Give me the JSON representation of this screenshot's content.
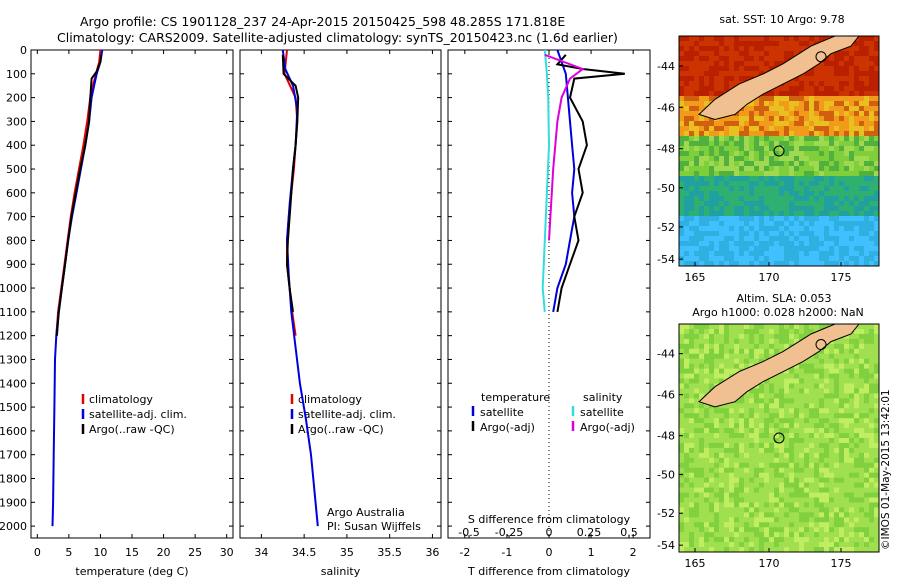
{
  "header": {
    "line1": "Argo profile: CS 1901128_237 24-Apr-2015 20150425_598 48.285S 171.818E",
    "line2": "Climatology: CARS2009. Satellite-adjusted climatology: synTS_20150423.nc (1.6d earlier)"
  },
  "footer_stamp": "©IMOS 01-May-2015 13:42:01",
  "credits": {
    "line1": "Argo Australia",
    "line2": "PI: Susan Wijffels"
  },
  "colors": {
    "climatology": "#e00000",
    "satellite": "#0000dd",
    "argo": "#000000",
    "sat_salinity": "#33dddd",
    "argo_salinity": "#dd00dd",
    "land": "#f0c090"
  },
  "chart_data": [
    {
      "type": "line",
      "name": "temperature",
      "xlabel": "temperature (deg C)",
      "ylim": [
        0,
        2050
      ],
      "xlim": [
        -1,
        31
      ],
      "xticks": [
        "0",
        "5",
        "10",
        "15",
        "20",
        "25",
        "30"
      ],
      "xtick_values": [
        0,
        5,
        10,
        15,
        20,
        25,
        30
      ],
      "yticks": [
        "0",
        "100",
        "200",
        "300",
        "400",
        "500",
        "600",
        "700",
        "800",
        "900",
        "1000",
        "1100",
        "1200",
        "1300",
        "1400",
        "1500",
        "1600",
        "1700",
        "1800",
        "1900",
        "2000"
      ],
      "ytick_values": [
        0,
        100,
        200,
        300,
        400,
        500,
        600,
        700,
        800,
        900,
        1000,
        1100,
        1200,
        1300,
        1400,
        1500,
        1600,
        1700,
        1800,
        1900,
        2000
      ],
      "legend": [
        "climatology",
        "satellite-adj. clim.",
        "Argo(..raw -QC)"
      ],
      "series": [
        {
          "name": "climatology",
          "color_key": "climatology",
          "points": [
            [
              10,
              0
            ],
            [
              9.8,
              50
            ],
            [
              9.3,
              100
            ],
            [
              8.8,
              150
            ],
            [
              8.4,
              200
            ],
            [
              7.9,
              300
            ],
            [
              7.3,
              400
            ],
            [
              6.6,
              500
            ],
            [
              5.9,
              600
            ],
            [
              5.3,
              700
            ],
            [
              4.8,
              800
            ],
            [
              4.3,
              900
            ],
            [
              3.8,
              1000
            ],
            [
              3.3,
              1100
            ],
            [
              3.0,
              1200
            ]
          ]
        },
        {
          "name": "satellite-adj. clim.",
          "color_key": "satellite",
          "points": [
            [
              10.3,
              0
            ],
            [
              10,
              50
            ],
            [
              9.4,
              100
            ],
            [
              9,
              150
            ],
            [
              8.6,
              200
            ],
            [
              8.2,
              300
            ],
            [
              7.6,
              400
            ],
            [
              6.9,
              500
            ],
            [
              6.2,
              600
            ],
            [
              5.5,
              700
            ],
            [
              4.9,
              800
            ],
            [
              4.4,
              900
            ],
            [
              3.9,
              1000
            ],
            [
              3.4,
              1100
            ],
            [
              3.0,
              1200
            ],
            [
              2.8,
              1300
            ],
            [
              2.7,
              1500
            ],
            [
              2.6,
              1700
            ],
            [
              2.5,
              1900
            ],
            [
              2.4,
              2000
            ]
          ]
        },
        {
          "name": "Argo(..raw -QC)",
          "color_key": "argo",
          "points": [
            [
              10.1,
              20
            ],
            [
              10,
              50
            ],
            [
              9.4,
              90
            ],
            [
              8.6,
              120
            ],
            [
              8.4,
              200
            ],
            [
              8.2,
              300
            ],
            [
              7.6,
              400
            ],
            [
              6.8,
              500
            ],
            [
              6.1,
              600
            ],
            [
              5.4,
              700
            ],
            [
              4.9,
              800
            ],
            [
              4.4,
              900
            ],
            [
              3.9,
              1000
            ],
            [
              3.4,
              1100
            ],
            [
              3.1,
              1200
            ]
          ]
        }
      ]
    },
    {
      "type": "line",
      "name": "salinity",
      "xlabel": "salinity",
      "ylim": [
        0,
        2050
      ],
      "xlim": [
        33.75,
        36.1
      ],
      "xticks": [
        "34",
        "34.5",
        "35",
        "35.5",
        "36"
      ],
      "xtick_values": [
        34,
        34.5,
        35,
        35.5,
        36
      ],
      "legend": [
        "climatology",
        "satellite-adj. clim.",
        "Argo(..raw -QC)"
      ],
      "series": [
        {
          "name": "climatology",
          "color_key": "climatology",
          "points": [
            [
              34.3,
              0
            ],
            [
              34.27,
              100
            ],
            [
              34.4,
              200
            ],
            [
              34.42,
              300
            ],
            [
              34.4,
              400
            ],
            [
              34.38,
              500
            ],
            [
              34.35,
              600
            ],
            [
              34.32,
              700
            ],
            [
              34.3,
              800
            ],
            [
              34.3,
              900
            ],
            [
              34.33,
              1000
            ],
            [
              34.36,
              1100
            ],
            [
              34.4,
              1200
            ]
          ]
        },
        {
          "name": "satellite-adj. clim.",
          "color_key": "satellite",
          "points": [
            [
              34.25,
              0
            ],
            [
              34.28,
              80
            ],
            [
              34.37,
              150
            ],
            [
              34.42,
              250
            ],
            [
              34.4,
              400
            ],
            [
              34.37,
              500
            ],
            [
              34.33,
              650
            ],
            [
              34.3,
              800
            ],
            [
              34.32,
              950
            ],
            [
              34.35,
              1100
            ],
            [
              34.4,
              1250
            ],
            [
              34.45,
              1400
            ],
            [
              34.52,
              1550
            ],
            [
              34.58,
              1700
            ],
            [
              34.62,
              1850
            ],
            [
              34.66,
              2000
            ]
          ]
        },
        {
          "name": "Argo(..raw -QC)",
          "color_key": "argo",
          "points": [
            [
              34.25,
              20
            ],
            [
              34.26,
              100
            ],
            [
              34.4,
              150
            ],
            [
              34.43,
              200
            ],
            [
              34.42,
              300
            ],
            [
              34.4,
              400
            ],
            [
              34.37,
              500
            ],
            [
              34.34,
              650
            ],
            [
              34.31,
              800
            ],
            [
              34.3,
              900
            ],
            [
              34.33,
              1000
            ],
            [
              34.37,
              1100
            ]
          ]
        }
      ]
    },
    {
      "type": "line",
      "name": "difference",
      "xlabel": "T difference from climatology",
      "xlabel_top": "S difference from climatology",
      "xlim": [
        -2.4,
        2.4
      ],
      "xticks": [
        "-2",
        "-1",
        "0",
        "1",
        "2"
      ],
      "xtick_values": [
        -2,
        -1,
        0,
        1,
        2
      ],
      "xticks_top": [
        "-0.5",
        "-0.25",
        "0",
        "0.25",
        "0.5"
      ],
      "xtick_top_values": [
        -1.9,
        -0.95,
        0,
        0.95,
        1.9
      ],
      "legend_temperature": {
        "heading": "temperature",
        "items": [
          "satellite",
          "Argo(-adj)"
        ]
      },
      "legend_salinity": {
        "heading": "salinity",
        "items": [
          "satellite",
          "Argo(-adj)"
        ]
      },
      "series": [
        {
          "name": "temperature satellite",
          "color_key": "satellite",
          "points": [
            [
              0.2,
              0
            ],
            [
              0.3,
              50
            ],
            [
              0.4,
              100
            ],
            [
              0.45,
              200
            ],
            [
              0.5,
              300
            ],
            [
              0.55,
              400
            ],
            [
              0.6,
              500
            ],
            [
              0.55,
              600
            ],
            [
              0.6,
              700
            ],
            [
              0.5,
              800
            ],
            [
              0.4,
              900
            ],
            [
              0.2,
              1000
            ],
            [
              0.1,
              1100
            ]
          ]
        },
        {
          "name": "temperature Argo(-adj)",
          "color_key": "argo",
          "points": [
            [
              0.4,
              20
            ],
            [
              0.2,
              60
            ],
            [
              0.8,
              80
            ],
            [
              1.8,
              100
            ],
            [
              0.6,
              120
            ],
            [
              0.5,
              200
            ],
            [
              0.8,
              300
            ],
            [
              0.9,
              400
            ],
            [
              0.7,
              500
            ],
            [
              0.8,
              600
            ],
            [
              0.6,
              700
            ],
            [
              0.7,
              800
            ],
            [
              0.5,
              900
            ],
            [
              0.3,
              1000
            ],
            [
              0.2,
              1100
            ]
          ]
        },
        {
          "name": "salinity satellite",
          "color_key": "sat_salinity",
          "points": [
            [
              -0.1,
              0
            ],
            [
              -0.05,
              100
            ],
            [
              -0.02,
              200
            ],
            [
              0.0,
              400
            ],
            [
              -0.05,
              600
            ],
            [
              -0.1,
              800
            ],
            [
              -0.15,
              1000
            ],
            [
              -0.1,
              1100
            ]
          ]
        },
        {
          "name": "salinity Argo(-adj)",
          "color_key": "argo_salinity",
          "points": [
            [
              -0.1,
              20
            ],
            [
              0.8,
              80
            ],
            [
              0.5,
              120
            ],
            [
              0.3,
              200
            ],
            [
              0.2,
              300
            ],
            [
              0.1,
              500
            ],
            [
              0.0,
              800
            ]
          ]
        }
      ]
    },
    {
      "type": "heatmap",
      "name": "sst-map",
      "title": "sat. SST: 10  Argo: 9.78",
      "xticks": [
        "165",
        "170",
        "175"
      ],
      "yticks": [
        "-44",
        "-46",
        "-48",
        "-50",
        "-52",
        "-54"
      ]
    },
    {
      "type": "heatmap",
      "name": "sla-map",
      "title_line1": "Altim. SLA: 0.053",
      "title_line2": "Argo h1000: 0.028 h2000: NaN",
      "xticks": [
        "165",
        "170",
        "175"
      ],
      "yticks": [
        "-44",
        "-46",
        "-48",
        "-50",
        "-52",
        "-54"
      ]
    }
  ]
}
